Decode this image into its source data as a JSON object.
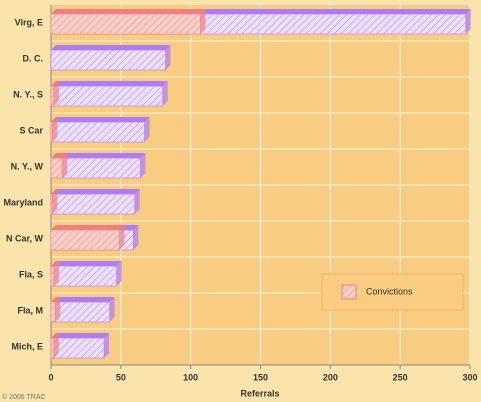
{
  "chart_data": {
    "type": "bar",
    "orientation": "horizontal",
    "x_label": "Referrals",
    "source": "© 2006 TRAC",
    "categories": [
      "Virg, E",
      "D. C.",
      "N. Y., S",
      "S Car",
      "N. Y., W",
      "Maryland",
      "N Car, W",
      "Fla, S",
      "Fla, M",
      "Mich, E"
    ],
    "series": [
      {
        "color": "#b07cf5",
        "values": [
          297,
          82,
          80,
          67,
          64,
          60,
          59,
          47,
          42,
          38
        ]
      },
      {
        "name": "Convictions",
        "color": "#f08080",
        "values": [
          107,
          0,
          2,
          1,
          8,
          1,
          49,
          2,
          3,
          2
        ]
      }
    ],
    "xlim": [
      0,
      300
    ],
    "xticks": [
      0,
      50,
      100,
      150,
      200,
      250,
      300
    ],
    "grid": true,
    "legend": "lower right"
  }
}
